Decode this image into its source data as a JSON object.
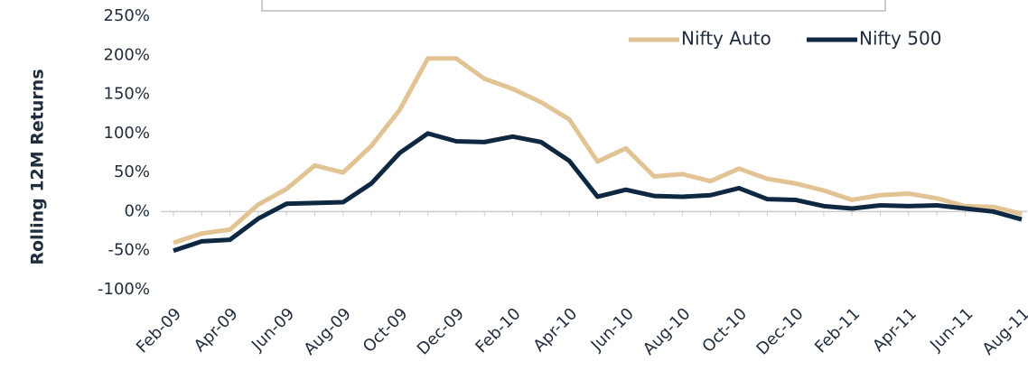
{
  "chart_data": {
    "type": "line",
    "y_label": "Rolling 12M Returns",
    "categories": [
      "Feb-09",
      null,
      "Apr-09",
      null,
      "Jun-09",
      null,
      "Aug-09",
      null,
      "Oct-09",
      null,
      "Dec-09",
      null,
      "Feb-10",
      null,
      "Apr-10",
      null,
      "Jun-10",
      null,
      "Aug-10",
      null,
      "Oct-10",
      null,
      "Dec-10",
      null,
      "Feb-11",
      null,
      "Apr-11",
      null,
      "Jun-11",
      null,
      "Aug-11"
    ],
    "series": [
      {
        "name": "Nifty Auto",
        "color": "#e2c393",
        "values": [
          -40,
          -28,
          -23,
          9,
          29,
          59,
          50,
          84,
          130,
          196,
          196,
          170,
          157,
          140,
          118,
          64,
          81,
          45,
          48,
          39,
          55,
          42,
          36,
          27,
          15,
          21,
          23,
          17,
          7,
          6,
          -3
        ]
      },
      {
        "name": "Nifty 500",
        "color": "#0e2841",
        "values": [
          -50,
          -38,
          -36,
          -9,
          10,
          11,
          12,
          36,
          75,
          100,
          90,
          89,
          96,
          89,
          65,
          19,
          28,
          20,
          19,
          21,
          30,
          16,
          15,
          7,
          4,
          8,
          7,
          8,
          4,
          0,
          -10
        ]
      }
    ],
    "ylim": [
      -100,
      250
    ],
    "yticks": [
      {
        "value": -100,
        "label": "-100%"
      },
      {
        "value": -50,
        "label": "-50%"
      },
      {
        "value": 0,
        "label": "0%"
      },
      {
        "value": 50,
        "label": "50%"
      },
      {
        "value": 100,
        "label": "100%"
      },
      {
        "value": 150,
        "label": "150%"
      },
      {
        "value": 200,
        "label": "200%"
      },
      {
        "value": 250,
        "label": "250%"
      }
    ],
    "legend": "top-right",
    "grid": false
  }
}
